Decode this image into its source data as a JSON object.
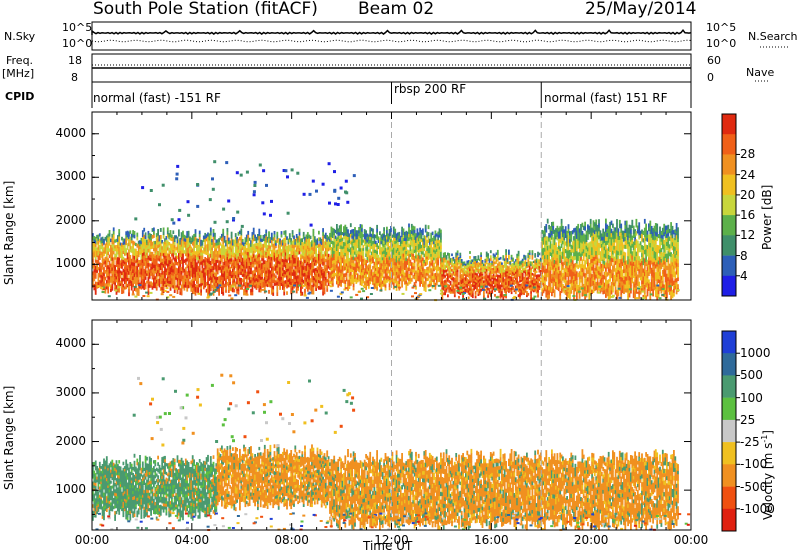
{
  "header": {
    "station": "South Pole Station (fitACF)",
    "beam": "Beam 02",
    "date": "25/May/2014"
  },
  "strip": {
    "nsky_label": "N.Sky",
    "nsky_ticks": [
      "10^5",
      "10^0"
    ],
    "nsearch_label": "N.Search",
    "nsearch_ticks": [
      "10^5",
      "10^0"
    ],
    "freq_label_1": "Freq.",
    "freq_label_2": "[MHz]",
    "freq_ticks": [
      "18",
      "8"
    ],
    "nave_label": "Nave",
    "nave_ticks": [
      "60",
      "0"
    ],
    "cpid_label": "CPID",
    "modes": [
      "normal (fast) -151 RF",
      "rbsp 200 RF",
      "normal (fast) 151 RF"
    ]
  },
  "chart_data": [
    {
      "type": "heatmap",
      "panel": "power",
      "xlabel": "",
      "ylabel": "Slant Range [km]",
      "x_range_hours": [
        0,
        24
      ],
      "ylim": [
        180,
        4500
      ],
      "y_ticks": [
        "1000",
        "2000",
        "3000",
        "4000"
      ],
      "x_ticks": [
        "00:00",
        "04:00",
        "08:00",
        "12:00",
        "16:00",
        "20:00",
        "00:00"
      ],
      "colorbar": {
        "label": "Power [dB]",
        "ticks": [
          "4",
          "8",
          "12",
          "16",
          "20",
          "24",
          "28"
        ],
        "colors": [
          "#1f1fe6",
          "#2d5fb8",
          "#3f8f6a",
          "#5cb04a",
          "#c8d63c",
          "#f0c020",
          "#f09020",
          "#f06018",
          "#e02a10"
        ]
      },
      "echo_bands_approx": [
        {
          "t_start": 0.0,
          "t_end": 9.5,
          "range_low": 400,
          "range_high": 1700,
          "dominant": "orange-red"
        },
        {
          "t_start": 9.5,
          "t_end": 14.0,
          "range_low": 500,
          "range_high": 1800,
          "dominant": "orange-green"
        },
        {
          "t_start": 14.0,
          "t_end": 18.0,
          "range_low": 300,
          "range_high": 1200,
          "dominant": "orange-red"
        },
        {
          "t_start": 18.0,
          "t_end": 23.5,
          "range_low": 300,
          "range_high": 1900,
          "dominant": "orange-green"
        }
      ]
    },
    {
      "type": "heatmap",
      "panel": "velocity",
      "xlabel": "Time UT",
      "ylabel": "Slant Range [km]",
      "x_range_hours": [
        0,
        24
      ],
      "ylim": [
        180,
        4500
      ],
      "y_ticks": [
        "1000",
        "2000",
        "3000",
        "4000"
      ],
      "x_ticks": [
        "00:00",
        "04:00",
        "08:00",
        "12:00",
        "16:00",
        "20:00",
        "00:00"
      ],
      "colorbar": {
        "label": "Velocity [m s",
        "label_sup": "-1",
        "label_end": "]",
        "ticks": [
          "1000",
          "500",
          "100",
          "25",
          "-25",
          "-100",
          "-500",
          "-1000"
        ],
        "colors": [
          "#1f3fd6",
          "#2f6a9a",
          "#4a9a70",
          "#5cc040",
          "#c8c8c8",
          "#f0c020",
          "#f09020",
          "#f05010",
          "#e02010"
        ]
      },
      "echo_bands_approx": [
        {
          "t_start": 0.0,
          "t_end": 5.0,
          "range_low": 500,
          "range_high": 1600,
          "dominant": "green"
        },
        {
          "t_start": 5.0,
          "t_end": 9.5,
          "range_low": 700,
          "range_high": 1800,
          "dominant": "orange"
        },
        {
          "t_start": 9.5,
          "t_end": 18.0,
          "range_low": 300,
          "range_high": 1700,
          "dominant": "orange"
        },
        {
          "t_start": 18.0,
          "t_end": 23.5,
          "range_low": 300,
          "range_high": 1700,
          "dominant": "orange"
        }
      ]
    }
  ]
}
